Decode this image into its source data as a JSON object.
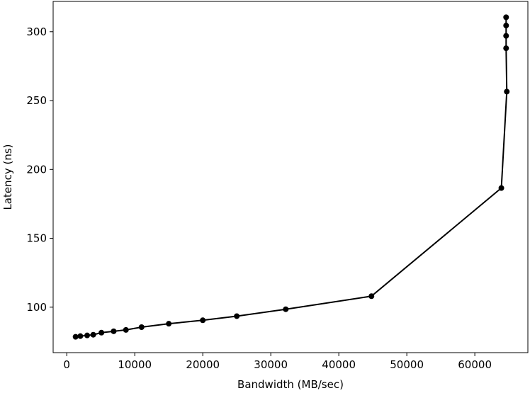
{
  "chart_data": {
    "type": "line",
    "x_label": "Bandwidth (MB/sec)",
    "y_label": "Latency (ns)",
    "x": [
      1300,
      2000,
      3000,
      3900,
      5100,
      6900,
      8700,
      11000,
      15000,
      20000,
      25000,
      32200,
      44800,
      63900,
      64700,
      64600,
      64600,
      64600,
      64600
    ],
    "series": [
      {
        "color": "#000000",
        "values": [
          78.5,
          79,
          79.5,
          80,
          81.5,
          82.5,
          83.5,
          85.5,
          88,
          90.5,
          93.5,
          98.5,
          108,
          186.5,
          256.5,
          288,
          297,
          304.5,
          310.5
        ]
      }
    ],
    "xlim": [
      -2000,
      67800
    ],
    "ylim": [
      67,
      322
    ],
    "xticks": [
      0,
      10000,
      20000,
      30000,
      40000,
      50000,
      60000
    ],
    "yticks": [
      100,
      150,
      200,
      250,
      300
    ],
    "grid": false
  }
}
